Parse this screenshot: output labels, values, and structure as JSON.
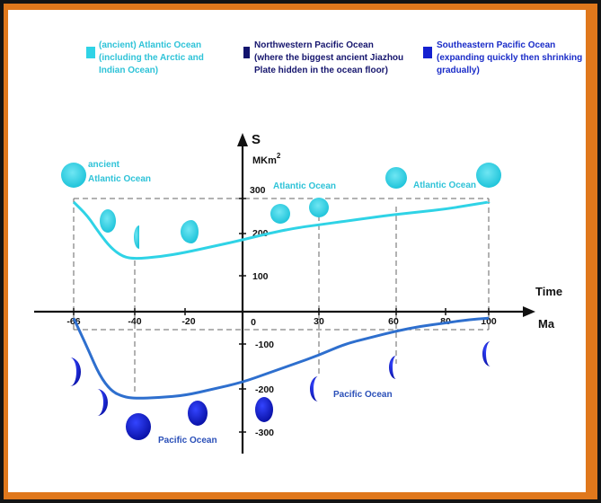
{
  "colors": {
    "atlantic": "#2fd3e6",
    "atlantic_text": "#2fc3d8",
    "northwestern_pacific": "#12146e",
    "southeastern_pacific": "#1420d0",
    "pacific_curve": "#2e6fce",
    "pacific_text": "#2a4fb8",
    "frame": "#e0781c"
  },
  "legend": {
    "atlantic": "(ancient) Atlantic Ocean\n(including the Arctic and\nIndian Ocean)",
    "northwestern_pacific": "Northwestern Pacific Ocean\n(where the biggest ancient Jiazhou\nPlate hidden in the ocean floor)",
    "southeastern_pacific": "Southeastern Pacific Ocean\n(expanding quickly then shrinking\ngradually)"
  },
  "axes": {
    "y_label": "S",
    "y_unit": "MKm",
    "y_unit_sup": "2",
    "x_label_time": "Time",
    "x_label_unit": "Ma",
    "x_ticks": [
      "-66",
      "-40",
      "-20",
      "0",
      "30",
      "60",
      "80",
      "100"
    ],
    "y_ticks": [
      "300",
      "200",
      "100",
      "-100",
      "-200",
      "-300"
    ]
  },
  "annotations": {
    "ancient_atlantic_1": "ancient",
    "ancient_atlantic_2": "Atlantic Ocean",
    "atlantic_mid": "Atlantic Ocean",
    "atlantic_right": "Atlantic Ocean",
    "pacific_mid": "Pacific Ocean",
    "pacific_bottom": "Pacific Ocean"
  },
  "chart_data": {
    "type": "line",
    "xlabel": "Time",
    "x_unit": "Ma",
    "ylabel": "S",
    "y_unit": "MKm2",
    "xlim": [
      -66,
      100
    ],
    "ylim": [
      -300,
      300
    ],
    "series": [
      {
        "name": "Atlantic Ocean",
        "x": [
          -66,
          -60,
          -55,
          -50,
          -45,
          -40,
          -30,
          -20,
          -10,
          0,
          10,
          20,
          30,
          40,
          50,
          60,
          70,
          80,
          90,
          100
        ],
        "values": [
          290,
          250,
          200,
          165,
          145,
          140,
          145,
          155,
          170,
          185,
          200,
          215,
          225,
          235,
          245,
          255,
          262,
          270,
          280,
          290
        ]
      },
      {
        "name": "Pacific Ocean",
        "x": [
          -66,
          -60,
          -55,
          -50,
          -45,
          -40,
          -30,
          -20,
          -10,
          0,
          10,
          20,
          30,
          40,
          50,
          60,
          70,
          80,
          90,
          100
        ],
        "values": [
          -20,
          -110,
          -170,
          -205,
          -218,
          -222,
          -220,
          -215,
          -200,
          -185,
          -165,
          -145,
          -125,
          -100,
          -80,
          -60,
          -45,
          -35,
          -25,
          -20
        ]
      }
    ]
  }
}
